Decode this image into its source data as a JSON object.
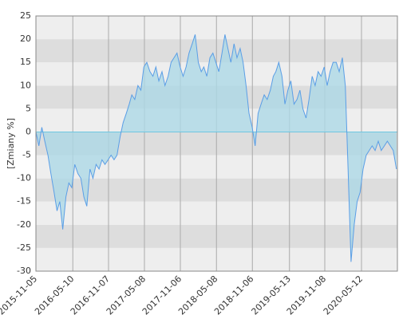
{
  "chart_data": {
    "type": "area",
    "y_label": "[Zmiany %]",
    "x": [
      "2015-11-05",
      "2015-11-20",
      "2015-12-05",
      "2015-12-20",
      "2016-01-05",
      "2016-01-20",
      "2016-02-05",
      "2016-02-20",
      "2016-03-05",
      "2016-03-20",
      "2016-04-05",
      "2016-04-20",
      "2016-05-05",
      "2016-05-20",
      "2016-06-05",
      "2016-06-20",
      "2016-07-05",
      "2016-07-20",
      "2016-08-05",
      "2016-08-20",
      "2016-09-05",
      "2016-09-20",
      "2016-10-05",
      "2016-10-20",
      "2016-11-05",
      "2016-11-20",
      "2016-12-05",
      "2016-12-20",
      "2017-01-05",
      "2017-01-20",
      "2017-02-05",
      "2017-02-20",
      "2017-03-05",
      "2017-03-20",
      "2017-04-05",
      "2017-04-20",
      "2017-05-05",
      "2017-05-20",
      "2017-06-05",
      "2017-06-20",
      "2017-07-05",
      "2017-07-20",
      "2017-08-05",
      "2017-08-20",
      "2017-09-05",
      "2017-09-20",
      "2017-10-05",
      "2017-10-20",
      "2017-11-05",
      "2017-11-20",
      "2017-12-05",
      "2017-12-20",
      "2018-01-05",
      "2018-01-20",
      "2018-02-05",
      "2018-02-20",
      "2018-03-05",
      "2018-03-20",
      "2018-04-05",
      "2018-04-20",
      "2018-05-05",
      "2018-05-20",
      "2018-06-05",
      "2018-06-20",
      "2018-07-05",
      "2018-07-20",
      "2018-08-05",
      "2018-08-20",
      "2018-09-05",
      "2018-09-20",
      "2018-10-05",
      "2018-10-20",
      "2018-11-05",
      "2018-11-20",
      "2018-12-05",
      "2018-12-20",
      "2019-01-05",
      "2019-01-20",
      "2019-02-05",
      "2019-02-20",
      "2019-03-05",
      "2019-03-20",
      "2019-04-05",
      "2019-04-20",
      "2019-05-05",
      "2019-05-20",
      "2019-06-05",
      "2019-06-20",
      "2019-07-05",
      "2019-07-20",
      "2019-08-05",
      "2019-08-20",
      "2019-09-05",
      "2019-09-20",
      "2019-10-05",
      "2019-10-20",
      "2019-11-05",
      "2019-11-20",
      "2019-12-05",
      "2019-12-20",
      "2020-01-05",
      "2020-01-20",
      "2020-02-05",
      "2020-02-20",
      "2020-03-05",
      "2020-03-20",
      "2020-04-05",
      "2020-04-20",
      "2020-05-05",
      "2020-05-20",
      "2020-06-05",
      "2020-06-20",
      "2020-07-05",
      "2020-07-20",
      "2020-08-05",
      "2020-08-20",
      "2020-09-05",
      "2020-09-20",
      "2020-10-05",
      "2020-10-20",
      "2020-11-05"
    ],
    "values": [
      0,
      -3,
      1,
      -2,
      -5,
      -9,
      -13,
      -17,
      -15,
      -21,
      -14,
      -11,
      -12,
      -7,
      -9,
      -10,
      -14,
      -16,
      -8,
      -10,
      -7,
      -8,
      -6,
      -7,
      -6,
      -5,
      -6,
      -5,
      -1,
      2,
      4,
      6,
      8,
      7,
      10,
      9,
      14,
      15,
      13,
      12,
      14,
      11,
      13,
      10,
      12,
      15,
      16,
      17,
      14,
      12,
      14,
      17,
      19,
      21,
      15,
      13,
      14,
      12,
      16,
      17,
      15,
      13,
      17,
      21,
      18,
      15,
      19,
      16,
      18,
      15,
      10,
      4,
      1,
      -3,
      4,
      6,
      8,
      7,
      9,
      12,
      13,
      15,
      12,
      6,
      9,
      11,
      6,
      7,
      9,
      5,
      3,
      7,
      12,
      10,
      13,
      12,
      14,
      10,
      13,
      15,
      15,
      13,
      16,
      10,
      -8,
      -28,
      -20,
      -15,
      -13,
      -8,
      -5,
      -4,
      -3,
      -4,
      -2,
      -4,
      -3,
      -2,
      -3,
      -4,
      -8
    ],
    "color": "#5a9ee6",
    "fill": "#add8e6",
    "xlim": [
      "2015-11-05",
      "2020-11-10"
    ],
    "xticks": [
      "2015-11-05",
      "2016-05-10",
      "2016-11-07",
      "2017-05-08",
      "2017-11-06",
      "2018-05-08",
      "2018-11-06",
      "2019-05-13",
      "2019-11-08",
      "2020-05-12"
    ],
    "ylim": [
      -30,
      25
    ],
    "yticks": [
      -30,
      -25,
      -20,
      -15,
      -10,
      -5,
      0,
      5,
      10,
      15,
      20,
      25
    ],
    "grid": true
  }
}
